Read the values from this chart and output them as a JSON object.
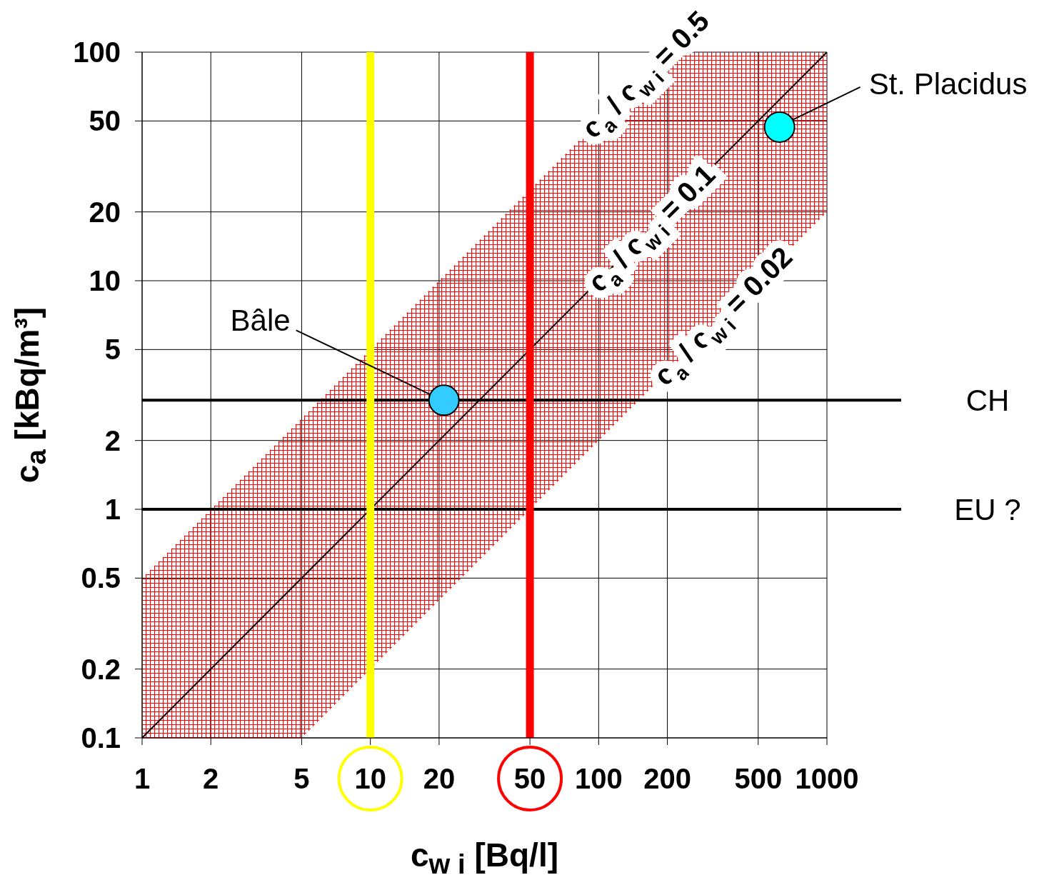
{
  "chart_data": {
    "type": "scatter",
    "xlabel": "c$_{w i}$ [Bq/l]",
    "ylabel": "c$_{a}$ [kBq/m³]",
    "xlim": [
      1,
      1000
    ],
    "ylim": [
      0.1,
      100
    ],
    "xticks": [
      1,
      2,
      5,
      10,
      20,
      50,
      100,
      200,
      500,
      1000
    ],
    "yticks": [
      0.1,
      0.2,
      0.5,
      1,
      2,
      5,
      10,
      20,
      50,
      100
    ],
    "log": "xy",
    "grid": true,
    "series": [
      {
        "type": "line",
        "color": "#000000",
        "x": [
          1,
          5,
          200,
          1000
        ],
        "values": [
          0.1,
          0.5,
          20,
          100
        ],
        "lower": [
          0.1,
          0.1,
          4,
          20
        ],
        "upper": [
          0.5,
          2.5,
          100,
          100
        ]
      },
      {
        "name": "Bâle",
        "marker": "circle",
        "x": [
          21
        ],
        "values": [
          3
        ],
        "color": "#33ccff"
      },
      {
        "name": "St. Placidus",
        "marker": "circle",
        "x": [
          620
        ],
        "values": [
          47
        ],
        "color": "#00ffff"
      }
    ],
    "ref_lines": [
      {
        "axis": "y",
        "value": 3,
        "label": "CH",
        "color": "#000000"
      },
      {
        "axis": "y",
        "value": 1,
        "label": "EU ?",
        "color": "#000000"
      },
      {
        "axis": "x",
        "value": 10,
        "color": "#ffff00"
      },
      {
        "axis": "x",
        "value": 50,
        "color": "#ff0000"
      }
    ],
    "annotations": [
      {
        "text": "c$_{a}$ / c$_{w i}$ = 0.5",
        "x": 160,
        "y": 80
      },
      {
        "text": "c$_{a}$ / c$_{w i}$ = 0.1",
        "x": 170,
        "y": 17
      },
      {
        "text": "c$_{a}$ / c$_{w i}$ = 0.02",
        "x": 350,
        "y": 7
      }
    ]
  }
}
